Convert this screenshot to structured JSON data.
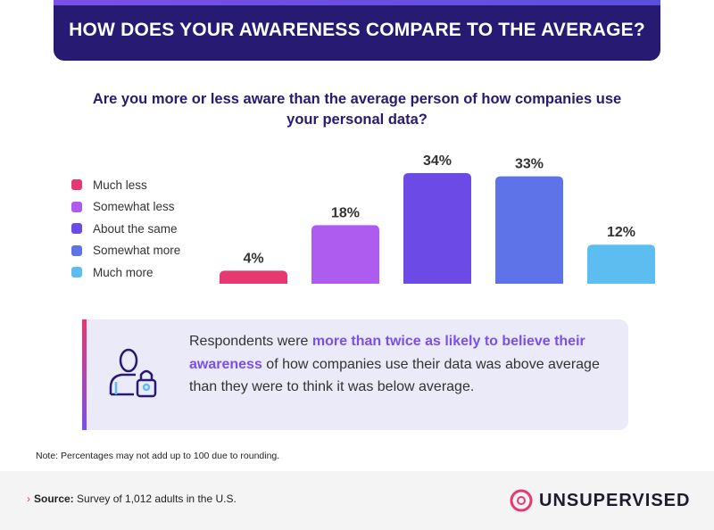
{
  "header": {
    "title": "HOW DOES YOUR AWARENESS COMPARE TO THE AVERAGE?"
  },
  "chart_data": {
    "type": "bar",
    "title": "Are you more or less aware than the average person of how companies use your personal data?",
    "categories": [
      "Much less",
      "Somewhat less",
      "About the same",
      "Somewhat more",
      "Much more"
    ],
    "values": [
      4,
      18,
      34,
      33,
      12
    ],
    "value_labels": [
      "4%",
      "18%",
      "34%",
      "33%",
      "12%"
    ],
    "colors": [
      "#e63972",
      "#ae5cf0",
      "#6b4ae6",
      "#5e73e8",
      "#5bbdf0"
    ],
    "unit": "%",
    "ylim": [
      0,
      34
    ],
    "legend_position": "left",
    "grid": false
  },
  "callout": {
    "icon": "user-lock-icon",
    "text_before": "Respondents were ",
    "highlight": "more than twice as likely to believe their awareness",
    "text_after": " of how companies use their data was above average than they were to think it was below average."
  },
  "note": "Note: Percentages may not add up to 100 due to rounding.",
  "footer": {
    "source_label": "Source:",
    "source_text": " Survey of 1,012 adults in the U.S.",
    "logo_text": "UNSUPERVISED"
  }
}
